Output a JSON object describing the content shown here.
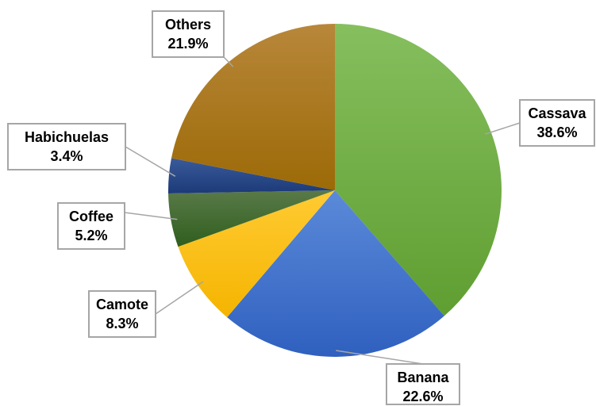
{
  "chart_data": {
    "type": "pie",
    "title": "",
    "start_angle_deg": 0,
    "direction": "clockwise",
    "slices": [
      {
        "label": "Cassava",
        "value": 38.6,
        "value_label": "38.6%",
        "color_light": "#86bf5e",
        "color_dark": "#5f9e31"
      },
      {
        "label": "Banana",
        "value": 22.6,
        "value_label": "22.6%",
        "color_light": "#5b8ad9",
        "color_dark": "#2f60bf"
      },
      {
        "label": "Camote",
        "value": 8.3,
        "value_label": "8.3%",
        "color_light": "#ffcb33",
        "color_dark": "#f5b400"
      },
      {
        "label": "Coffee",
        "value": 5.2,
        "value_label": "5.2%",
        "color_light": "#5a7a48",
        "color_dark": "#2f5e1e"
      },
      {
        "label": "Habichuelas",
        "value": 3.4,
        "value_label": "3.4%",
        "color_light": "#3a5a9a",
        "color_dark": "#1c3a78"
      },
      {
        "label": "Others",
        "value": 21.9,
        "value_label": "21.9%",
        "color_light": "#b8873a",
        "color_dark": "#9c6a06"
      }
    ]
  }
}
